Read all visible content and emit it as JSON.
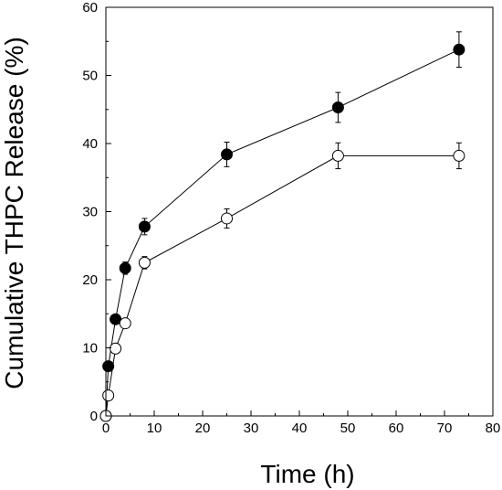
{
  "chart_data": {
    "type": "scatter",
    "title": "",
    "xlabel": "Time (h)",
    "ylabel": "Cumulative THPC Release (%)",
    "xlim": [
      0,
      80
    ],
    "ylim": [
      0,
      60
    ],
    "x_ticks": [
      0,
      10,
      20,
      30,
      40,
      50,
      60,
      70,
      80
    ],
    "y_ticks": [
      0,
      10,
      20,
      30,
      40,
      50,
      60
    ],
    "grid": false,
    "legend": "none",
    "series": [
      {
        "marker": "filled-circle",
        "color": "#000000",
        "x": [
          0,
          0.5,
          2,
          4,
          8,
          25,
          48,
          73
        ],
        "y": [
          0,
          7.3,
          14.2,
          21.7,
          27.8,
          38.4,
          45.3,
          53.8
        ],
        "err": [
          0,
          0,
          0,
          0.9,
          1.2,
          1.8,
          2.2,
          2.6
        ]
      },
      {
        "marker": "open-circle",
        "color": "#000000",
        "x": [
          0,
          0.5,
          2,
          4,
          8,
          25,
          48,
          73
        ],
        "y": [
          0,
          3.0,
          9.9,
          13.6,
          22.5,
          29.0,
          38.2,
          38.2
        ],
        "err": [
          0,
          0,
          0,
          0,
          0.9,
          1.4,
          1.9,
          1.9
        ]
      }
    ]
  }
}
